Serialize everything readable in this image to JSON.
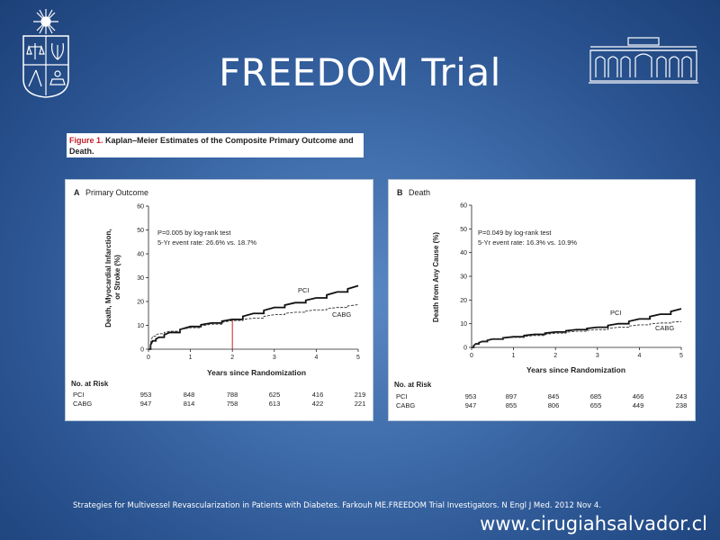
{
  "slide": {
    "title": "FREEDOM Trial",
    "citation": "Strategies for Multivessel Revascularization in Patients with Diabetes. Farkouh ME.FREEDOM Trial Investigators. N Engl J Med. 2012 Nov 4.",
    "website": "www.cirugiahsalvador.cl"
  },
  "figure": {
    "label": "Figure 1.",
    "caption": "Kaplan–Meier Estimates of the Composite Primary Outcome and Death."
  },
  "colors": {
    "marker": "#cc2222",
    "pci_line": "#111111",
    "cabg_line": "#333333"
  },
  "chart_data": [
    {
      "type": "line",
      "panel_letter": "A",
      "title": "Primary Outcome",
      "ylabel": "Death, Myocardial Infarction, or Stroke (%)",
      "xlabel": "Years since Randomization",
      "xlim": [
        0,
        5
      ],
      "ylim": [
        0,
        60
      ],
      "xticks": [
        0,
        1,
        2,
        3,
        4,
        5
      ],
      "yticks": [
        0,
        10,
        20,
        30,
        40,
        50,
        60
      ],
      "grid": false,
      "annotations": [
        "P=0.005 by log-rank test",
        "5-Yr event rate: 26.6% vs. 18.7%"
      ],
      "vline_x": 2,
      "series": [
        {
          "name": "PCI",
          "x": [
            0,
            0.1,
            0.25,
            0.5,
            1,
            1.5,
            2,
            2.5,
            3,
            3.5,
            4,
            4.5,
            5
          ],
          "y": [
            0,
            3.5,
            5,
            7,
            9.5,
            11,
            12.5,
            15,
            17.5,
            19.5,
            21.5,
            24,
            26.6
          ]
        },
        {
          "name": "CABG",
          "x": [
            0,
            0.1,
            0.25,
            0.5,
            1,
            1.5,
            2,
            2.5,
            3,
            3.5,
            4,
            4.5,
            5
          ],
          "y": [
            0,
            5.5,
            6.5,
            7.5,
            9,
            10.5,
            12,
            13,
            14.5,
            15.5,
            16.5,
            17.5,
            18.7
          ]
        }
      ],
      "risk_table": {
        "header": "No. at Risk",
        "rows": [
          {
            "label": "PCI",
            "values": [
              "953",
              "848",
              "788",
              "625",
              "416",
              "219"
            ]
          },
          {
            "label": "CABG",
            "values": [
              "947",
              "814",
              "758",
              "613",
              "422",
              "221"
            ]
          }
        ]
      }
    },
    {
      "type": "line",
      "panel_letter": "B",
      "title": "Death",
      "ylabel": "Death from Any Cause (%)",
      "xlabel": "Years since Randomization",
      "xlim": [
        0,
        5
      ],
      "ylim": [
        0,
        60
      ],
      "xticks": [
        0,
        1,
        2,
        3,
        4,
        5
      ],
      "yticks": [
        0,
        10,
        20,
        30,
        40,
        50,
        60
      ],
      "grid": false,
      "annotations": [
        "P=0.049 by log-rank test",
        "5-Yr event rate: 16.3% vs. 10.9%"
      ],
      "series": [
        {
          "name": "PCI",
          "x": [
            0,
            0.1,
            0.25,
            0.5,
            1,
            1.5,
            2,
            2.5,
            3,
            3.5,
            4,
            4.5,
            5
          ],
          "y": [
            0,
            1.5,
            2.5,
            3.5,
            4.5,
            5.5,
            6.5,
            7.5,
            8.5,
            10,
            12,
            14,
            16.3
          ]
        },
        {
          "name": "CABG",
          "x": [
            0,
            0.1,
            0.25,
            0.5,
            1,
            1.5,
            2,
            2.5,
            3,
            3.5,
            4,
            4.5,
            5
          ],
          "y": [
            0,
            1.5,
            2.5,
            3.5,
            4.2,
            5,
            6,
            6.8,
            7.5,
            8.5,
            9.5,
            10.3,
            10.9
          ]
        }
      ],
      "risk_table": {
        "header": "No. at Risk",
        "rows": [
          {
            "label": "PCI",
            "values": [
              "953",
              "897",
              "845",
              "685",
              "466",
              "243"
            ]
          },
          {
            "label": "CABG",
            "values": [
              "947",
              "855",
              "806",
              "655",
              "449",
              "238"
            ]
          }
        ]
      }
    }
  ]
}
